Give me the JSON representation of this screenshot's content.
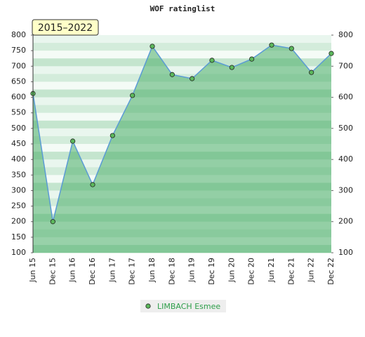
{
  "chart_data": {
    "type": "line",
    "title": "WOF ratinglist",
    "annotation": "2015–2022",
    "categories": [
      "Jun 15",
      "Dec 15",
      "Jun 16",
      "Dec 16",
      "Jun 17",
      "Dec 17",
      "Jun 18",
      "Dec 18",
      "Jun 19",
      "Dec 19",
      "Jun 20",
      "Dec 20",
      "Jun 21",
      "Dec 21",
      "Jun 22",
      "Dec 22"
    ],
    "series": [
      {
        "name": "LIMBACH Esmee",
        "color": "#5b9bd5",
        "marker_color": "#5cb85c",
        "values": [
          612,
          200,
          459,
          319,
          477,
          606,
          764,
          673,
          660,
          719,
          696,
          723,
          768,
          757,
          680,
          741
        ]
      }
    ],
    "ylim": [
      100,
      800
    ],
    "yticks": [
      100,
      150,
      200,
      250,
      300,
      350,
      400,
      450,
      500,
      550,
      600,
      650,
      700,
      750,
      800
    ],
    "y2lim": [
      100,
      800
    ],
    "y2ticks": [
      100,
      200,
      300,
      400,
      500,
      600,
      700,
      800
    ],
    "legend": "bottom"
  }
}
